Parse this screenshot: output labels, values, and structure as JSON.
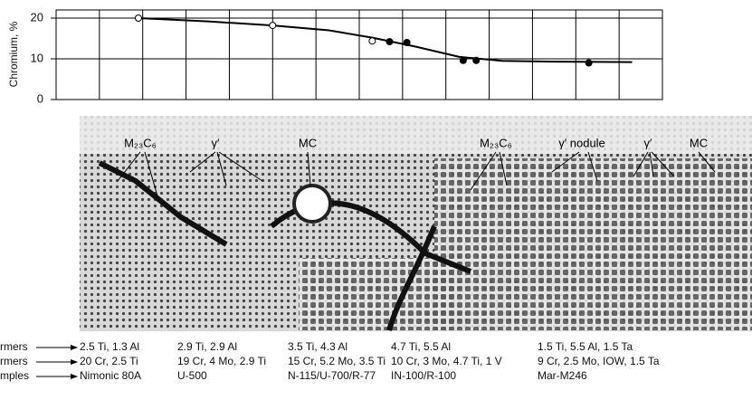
{
  "chart_data": {
    "type": "scatter",
    "y_label": "Chromium, %",
    "xlim": [
      0,
      14
    ],
    "xticks": [
      0,
      1,
      2,
      3,
      4,
      5,
      6,
      7,
      8,
      9,
      10,
      11,
      12,
      13,
      14
    ],
    "ylim": [
      0,
      22
    ],
    "yticks": [
      0,
      10,
      20
    ],
    "grid": true,
    "series": [
      {
        "color": "#ffffff",
        "x": [
          1.9,
          5.0,
          7.3
        ],
        "values": [
          20,
          18.2,
          14.4
        ]
      },
      {
        "color": "#000000",
        "x": [
          7.7,
          8.1,
          9.4,
          9.7,
          12.3
        ],
        "values": [
          14.2,
          14,
          9.6,
          9.6,
          9
        ]
      }
    ],
    "trend": {
      "color": "#000000",
      "x": [
        1.9,
        3.5,
        5.0,
        6.3,
        7.3,
        8.3,
        9.3,
        10.3,
        11.5,
        13.3
      ],
      "values": [
        20,
        19.2,
        18.2,
        17.0,
        15.2,
        13.0,
        10.5,
        9.5,
        9.3,
        9.2
      ]
    }
  },
  "micrograph": {
    "labels": [
      "M₂₃C₆",
      "γ′",
      "MC",
      "M₂₃C₆",
      "γ′ nodule",
      "γ′",
      "MC"
    ]
  },
  "table": {
    "row_labels": [
      "rmers",
      "rmers",
      "mples"
    ],
    "columns": [
      [
        "2.5 Ti, 1.3 Al",
        "20 Cr, 2.5 Ti",
        "Nimonic 80A"
      ],
      [
        "2.9 Ti, 2.9 Al",
        "19 Cr, 4 Mo, 2.9 Ti",
        "U-500"
      ],
      [
        "3.5 Ti, 4.3 Al",
        "15 Cr, 5.2 Mo, 3.5 Ti",
        "N-115/U-700/R-77"
      ],
      [
        "4.7 Ti, 5.5 Al",
        "10 Cr, 3 Mo, 4.7 Ti, 1 V",
        "IN-100/R-100"
      ],
      [
        "1.5 Ti, 5.5 Al, 1.5 Ta",
        "9 Cr, 2.5 Mo, IOW, 1.5 Ta",
        "Mar-M246"
      ]
    ]
  }
}
